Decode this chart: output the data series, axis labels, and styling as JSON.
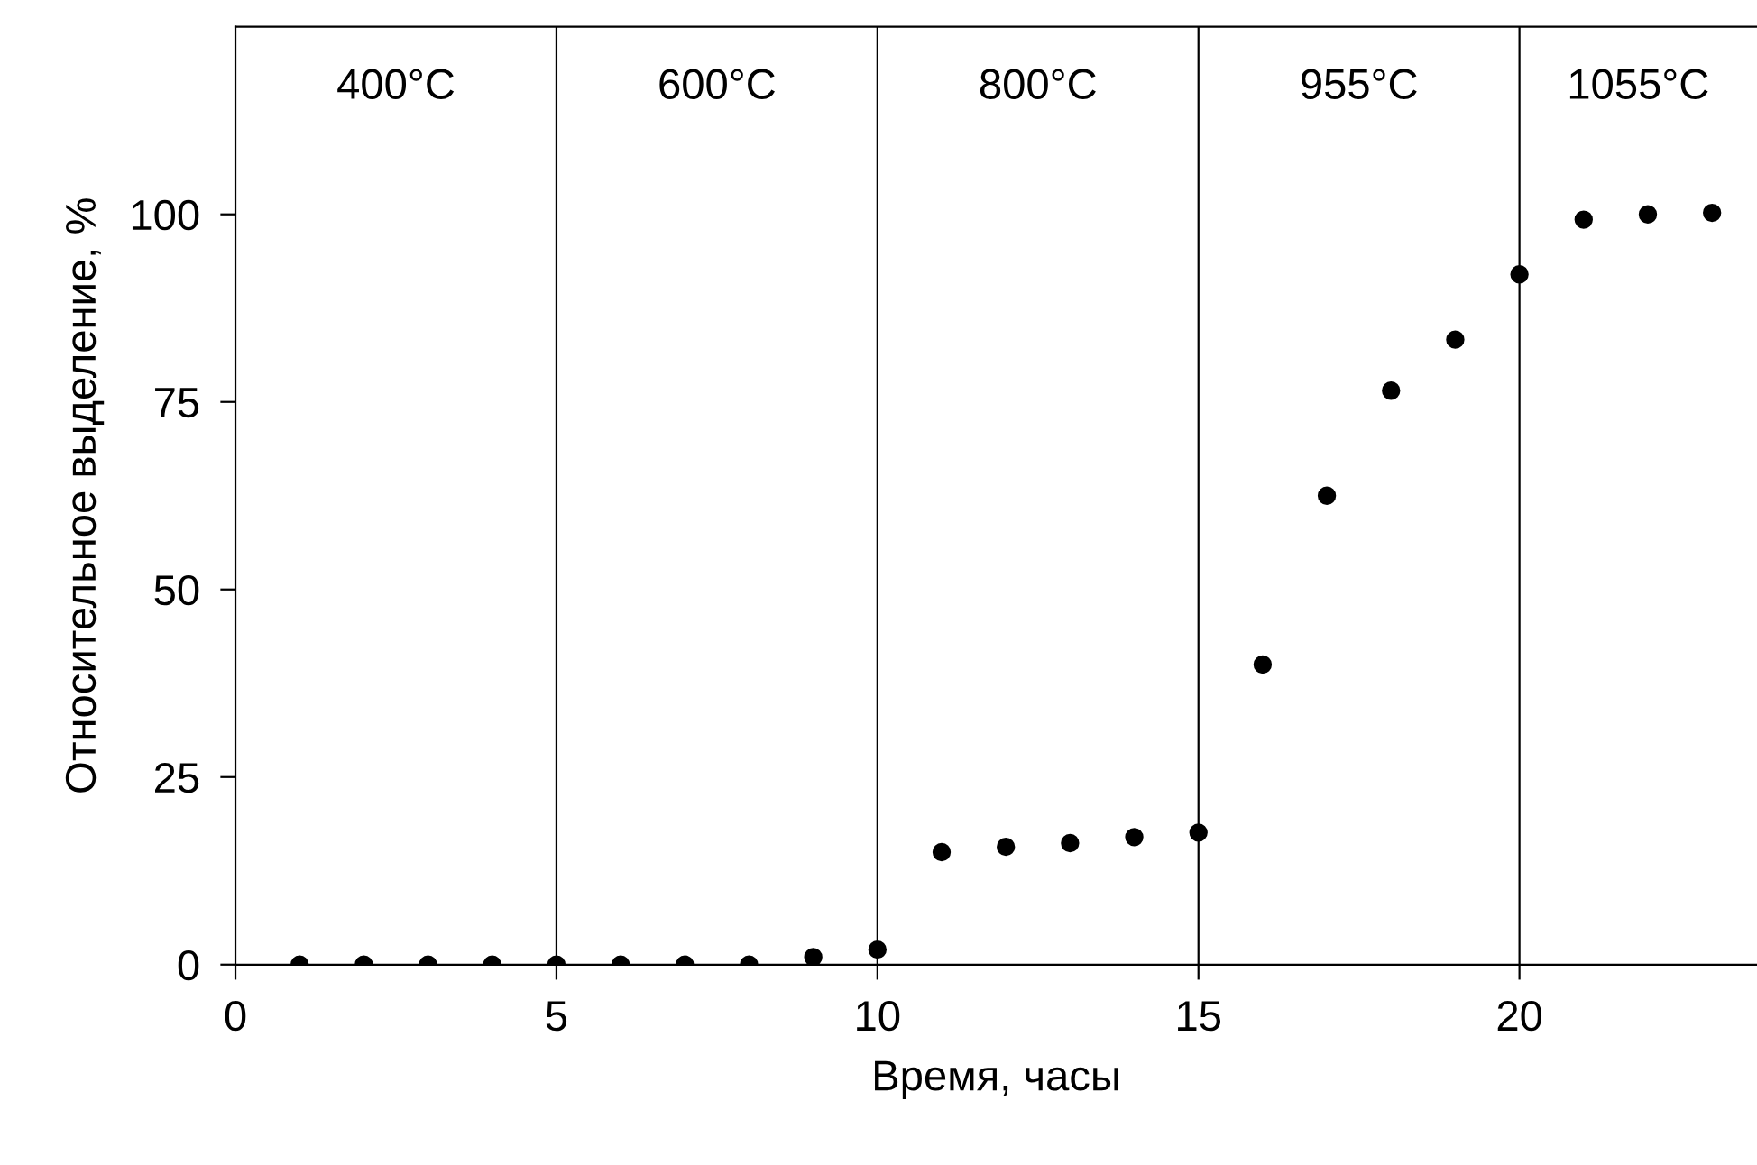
{
  "chart_data": {
    "type": "scatter",
    "xlabel": "Время, часы",
    "ylabel": "Относительное выделение, %",
    "x": [
      1,
      2,
      3,
      4,
      5,
      6,
      7,
      8,
      9,
      10,
      11,
      12,
      13,
      14,
      15,
      16,
      17,
      18,
      19,
      20,
      21,
      22,
      23
    ],
    "series": [
      {
        "color": "#000000",
        "values": [
          0,
          0,
          0,
          0,
          0,
          0,
          0,
          0,
          1,
          2,
          15,
          15.7,
          16.2,
          17,
          17.6,
          40,
          62.5,
          76.5,
          83.3,
          92,
          99.3,
          100,
          100.2
        ]
      }
    ],
    "xlim": [
      0,
      23.7
    ],
    "ylim": [
      0,
      125
    ],
    "xticks": [
      0,
      5,
      10,
      15,
      20
    ],
    "yticks": [
      0,
      25,
      50,
      75,
      100
    ],
    "ref_lines": [
      {
        "axis": "x",
        "value": 5,
        "color": "#000000"
      },
      {
        "axis": "x",
        "value": 10,
        "color": "#000000"
      },
      {
        "axis": "x",
        "value": 15,
        "color": "#000000"
      },
      {
        "axis": "x",
        "value": 20,
        "color": "#000000"
      }
    ],
    "annotations": [
      "400°C",
      "600°C",
      "800°C",
      "955°C",
      "1055°C"
    ],
    "marker": "circle",
    "grid": false,
    "legend": false
  }
}
